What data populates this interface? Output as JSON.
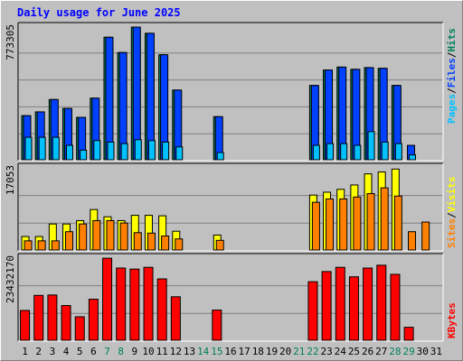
{
  "chart_data": {
    "type": "bar",
    "title": "Daily usage for June 2025",
    "days": [
      "1",
      "2",
      "3",
      "4",
      "5",
      "6",
      "7",
      "8",
      "9",
      "10",
      "11",
      "12",
      "13",
      "14",
      "15",
      "16",
      "17",
      "18",
      "19",
      "20",
      "21",
      "22",
      "23",
      "24",
      "25",
      "26",
      "27",
      "28",
      "29",
      "30",
      "31"
    ],
    "weekend_days": [
      "7",
      "8",
      "14",
      "15",
      "21",
      "22",
      "28",
      "29"
    ],
    "hits_panel": {
      "max_label": "773305",
      "ymax": 773305,
      "legend": [
        {
          "label": "Hits",
          "color": "#00805c"
        },
        {
          "label": "/",
          "color": "#000000"
        },
        {
          "label": "Files",
          "color": "#0040ff"
        },
        {
          "label": "/",
          "color": "#000000"
        },
        {
          "label": "Pages",
          "color": "#00c0ff"
        }
      ],
      "series": [
        {
          "name": "Hits",
          "color": "#00805c",
          "values": [
            257000,
            279000,
            351000,
            299000,
            247000,
            359000,
            714000,
            625000,
            773000,
            737000,
            612000,
            406000,
            null,
            null,
            251000,
            null,
            null,
            null,
            null,
            null,
            null,
            433000,
            523000,
            540000,
            527000,
            537000,
            533000,
            433000,
            null,
            null,
            null
          ]
        },
        {
          "name": "Files",
          "color": "#0040ff",
          "values": [
            257000,
            279000,
            351000,
            299000,
            247000,
            359000,
            714000,
            625000,
            773000,
            737000,
            612000,
            406000,
            null,
            null,
            251000,
            null,
            null,
            null,
            null,
            null,
            null,
            433000,
            523000,
            540000,
            527000,
            537000,
            533000,
            433000,
            84000,
            null,
            null
          ]
        },
        {
          "name": "Pages",
          "color": "#00c0ff",
          "values": [
            131000,
            131000,
            131000,
            84000,
            56000,
            112000,
            103000,
            94000,
            117000,
            112000,
            103000,
            75000,
            null,
            null,
            42000,
            null,
            null,
            null,
            null,
            null,
            null,
            84000,
            94000,
            94000,
            84000,
            164000,
            103000,
            94000,
            28000,
            null,
            null
          ]
        }
      ]
    },
    "visits_panel": {
      "max_label": "17053",
      "ymax": 17053,
      "legend": [
        {
          "label": "Visits",
          "color": "#ffff00"
        },
        {
          "label": "/",
          "color": "#000000"
        },
        {
          "label": "Sites",
          "color": "#ff8000"
        }
      ],
      "series": [
        {
          "name": "Visits",
          "color": "#ffff00",
          "values": [
            2800,
            2800,
            5400,
            5400,
            6100,
            8400,
            6900,
            6100,
            7200,
            7200,
            7100,
            3900,
            null,
            null,
            3100,
            null,
            null,
            null,
            null,
            null,
            null,
            11400,
            12000,
            12600,
            13500,
            15800,
            16200,
            16800,
            null,
            null,
            null
          ]
        },
        {
          "name": "Sites",
          "color": "#ff8000",
          "values": [
            1900,
            1900,
            1900,
            3800,
            5400,
            6100,
            6100,
            5600,
            3600,
            3500,
            2900,
            2300,
            null,
            null,
            2000,
            null,
            null,
            null,
            null,
            null,
            null,
            9900,
            10600,
            10600,
            11000,
            11700,
            12900,
            11200,
            3800,
            5800,
            null
          ]
        }
      ]
    },
    "kbytes_panel": {
      "max_label": "23432170",
      "ymax": 23432170,
      "legend": [
        {
          "label": "KBytes",
          "color": "#ff0000"
        }
      ],
      "series": [
        {
          "name": "KBytes",
          "color": "#ff0000",
          "values": [
            8500000,
            12800000,
            12900000,
            9900000,
            6700000,
            11700000,
            23400000,
            20600000,
            20300000,
            20800000,
            17500000,
            12400000,
            null,
            null,
            8600000,
            null,
            null,
            null,
            null,
            null,
            null,
            16700000,
            19600000,
            20800000,
            18100000,
            20600000,
            21400000,
            18800000,
            3700000,
            null,
            null
          ]
        }
      ]
    }
  }
}
